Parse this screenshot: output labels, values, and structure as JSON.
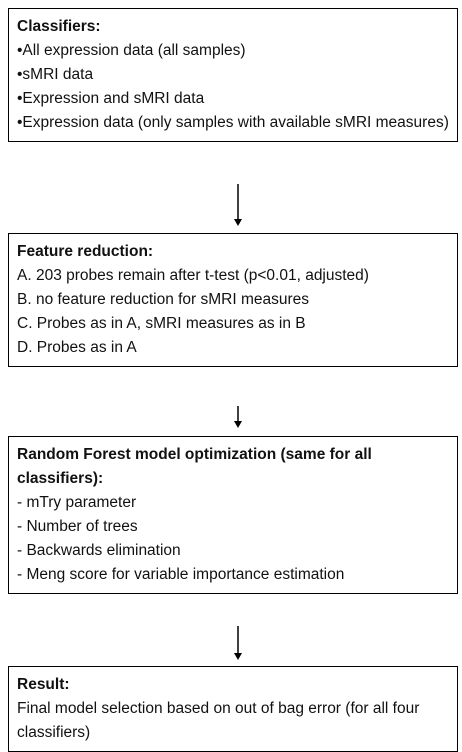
{
  "boxes": [
    {
      "title": "Classifiers:",
      "items": [
        "•All expression data (all samples)",
        "•sMRI data",
        "•Expression and sMRI data",
        "•Expression data (only samples with available sMRI measures)"
      ]
    },
    {
      "title": "Feature reduction:",
      "items": [
        "A. 203 probes remain after t-test (p<0.01, adjusted)",
        "B. no feature reduction for sMRI measures",
        "C. Probes as in A, sMRI measures as in B",
        "D. Probes as in A"
      ]
    },
    {
      "title": "Random Forest model optimization (same for all classifiers):",
      "items": [
        "- mTry parameter",
        "- Number of trees",
        "- Backwards elimination",
        "- Meng score for variable importance estimation"
      ]
    },
    {
      "title": "Result:",
      "items": [
        "Final model selection based on out of bag error (for all four classifiers)"
      ]
    }
  ]
}
